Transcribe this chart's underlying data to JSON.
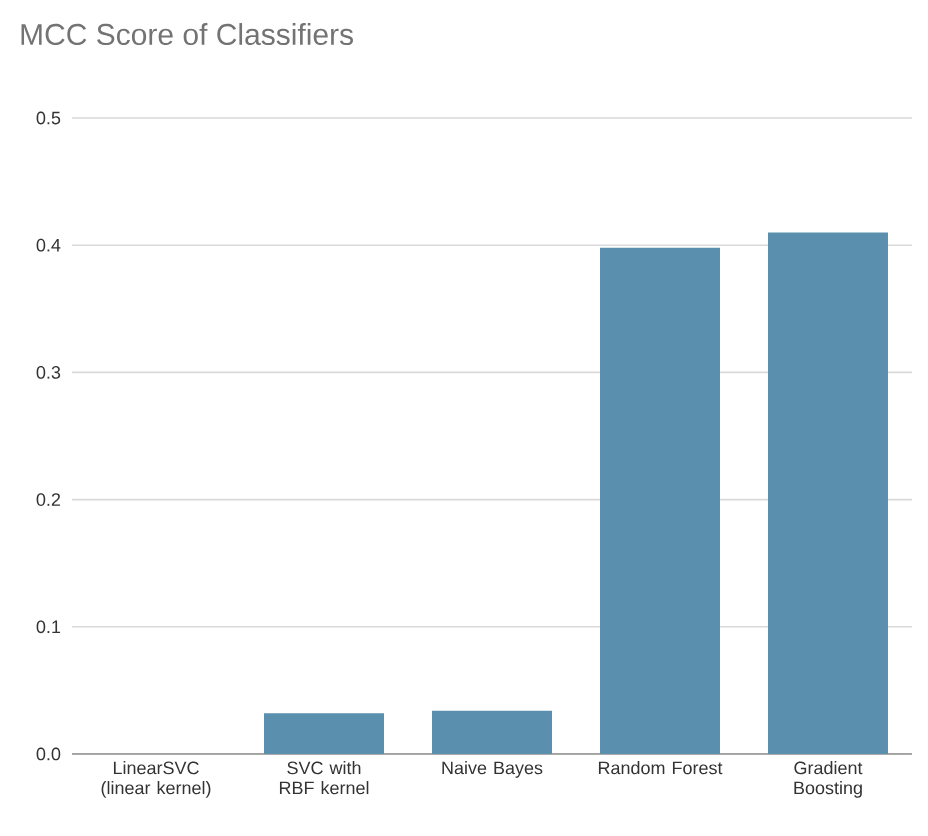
{
  "chart_data": {
    "type": "bar",
    "title": "MCC Score of Classifiers",
    "categories": [
      "LinearSVC (linear kernel)",
      "SVC with RBF kernel",
      "Naive Bayes",
      "Random Forest",
      "Gradient Boosting"
    ],
    "values": [
      0,
      0.032,
      0.034,
      0.398,
      0.41
    ],
    "color": "#5b8fae",
    "ylim": [
      0,
      0.5
    ],
    "yticks": [
      {
        "value": 0,
        "label": "0.0"
      },
      0.1,
      0.2,
      0.3,
      0.4,
      0.5
    ],
    "grid": "y"
  }
}
